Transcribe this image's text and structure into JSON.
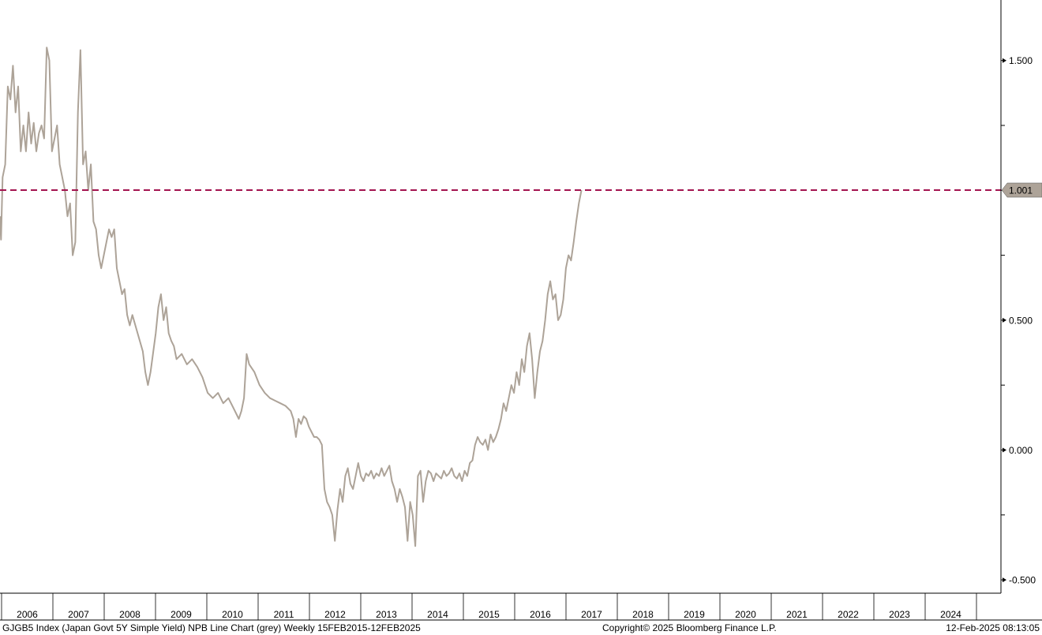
{
  "footer": {
    "ticker_description": "GJGB5 Index (Japan Govt 5Y Simple Yield) NPB Line Chart (grey)  Weekly 15FEB2015-12FEB2025",
    "copyright": "Copyright© 2025 Bloomberg Finance L.P.",
    "timestamp": "12-Feb-2025 08:13:05"
  },
  "chart_data": {
    "type": "line",
    "title": "",
    "xlabel": "",
    "ylabel": "",
    "xlim": [
      2006.2,
      2025.1
    ],
    "ylim": [
      -0.52,
      1.72
    ],
    "x_tick_labels": [
      "2006",
      "2007",
      "2008",
      "2009",
      "2010",
      "2011",
      "2012",
      "2013",
      "2014",
      "2015",
      "2016",
      "2017",
      "2018",
      "2019",
      "2020",
      "2021",
      "2022",
      "2023",
      "2024"
    ],
    "y_tick_labels": [
      "1.500",
      "0.500",
      "0.000",
      "-0.500"
    ],
    "y_tick_values": [
      1.5,
      0.5,
      0.0,
      -0.5
    ],
    "y_minor_ticks": [
      1.25,
      1.0,
      0.75,
      0.25,
      -0.25
    ],
    "grid": false,
    "series": [
      {
        "color": "#ada398",
        "points": [
          [
            2006.2,
            0.9
          ],
          [
            2006.22,
            0.81
          ],
          [
            2006.25,
            1.05
          ],
          [
            2006.3,
            1.1
          ],
          [
            2006.35,
            1.4
          ],
          [
            2006.4,
            1.35
          ],
          [
            2006.45,
            1.48
          ],
          [
            2006.5,
            1.3
          ],
          [
            2006.55,
            1.4
          ],
          [
            2006.6,
            1.15
          ],
          [
            2006.65,
            1.25
          ],
          [
            2006.7,
            1.15
          ],
          [
            2006.75,
            1.3
          ],
          [
            2006.8,
            1.18
          ],
          [
            2006.85,
            1.26
          ],
          [
            2006.9,
            1.15
          ],
          [
            2006.95,
            1.22
          ],
          [
            2007.0,
            1.25
          ],
          [
            2007.05,
            1.2
          ],
          [
            2007.1,
            1.55
          ],
          [
            2007.15,
            1.5
          ],
          [
            2007.2,
            1.15
          ],
          [
            2007.25,
            1.2
          ],
          [
            2007.3,
            1.25
          ],
          [
            2007.35,
            1.1
          ],
          [
            2007.4,
            1.05
          ],
          [
            2007.45,
            1.0
          ],
          [
            2007.5,
            0.9
          ],
          [
            2007.55,
            0.95
          ],
          [
            2007.6,
            0.75
          ],
          [
            2007.65,
            0.8
          ],
          [
            2007.7,
            1.3
          ],
          [
            2007.75,
            1.54
          ],
          [
            2007.8,
            1.1
          ],
          [
            2007.85,
            1.15
          ],
          [
            2007.9,
            1.0
          ],
          [
            2007.95,
            1.1
          ],
          [
            2008.0,
            0.88
          ],
          [
            2008.05,
            0.85
          ],
          [
            2008.1,
            0.75
          ],
          [
            2008.15,
            0.7
          ],
          [
            2008.2,
            0.75
          ],
          [
            2008.25,
            0.8
          ],
          [
            2008.3,
            0.85
          ],
          [
            2008.35,
            0.82
          ],
          [
            2008.4,
            0.85
          ],
          [
            2008.45,
            0.7
          ],
          [
            2008.5,
            0.65
          ],
          [
            2008.55,
            0.6
          ],
          [
            2008.6,
            0.62
          ],
          [
            2008.65,
            0.52
          ],
          [
            2008.7,
            0.48
          ],
          [
            2008.75,
            0.52
          ],
          [
            2008.85,
            0.45
          ],
          [
            2008.95,
            0.38
          ],
          [
            2009.0,
            0.3
          ],
          [
            2009.05,
            0.25
          ],
          [
            2009.1,
            0.3
          ],
          [
            2009.2,
            0.45
          ],
          [
            2009.25,
            0.55
          ],
          [
            2009.3,
            0.6
          ],
          [
            2009.35,
            0.5
          ],
          [
            2009.4,
            0.55
          ],
          [
            2009.45,
            0.45
          ],
          [
            2009.5,
            0.42
          ],
          [
            2009.55,
            0.4
          ],
          [
            2009.6,
            0.35
          ],
          [
            2009.7,
            0.37
          ],
          [
            2009.8,
            0.33
          ],
          [
            2009.9,
            0.35
          ],
          [
            2010.0,
            0.32
          ],
          [
            2010.1,
            0.28
          ],
          [
            2010.2,
            0.22
          ],
          [
            2010.3,
            0.2
          ],
          [
            2010.4,
            0.22
          ],
          [
            2010.5,
            0.18
          ],
          [
            2010.6,
            0.2
          ],
          [
            2010.7,
            0.16
          ],
          [
            2010.8,
            0.12
          ],
          [
            2010.85,
            0.15
          ],
          [
            2010.9,
            0.2
          ],
          [
            2010.95,
            0.37
          ],
          [
            2011.0,
            0.33
          ],
          [
            2011.1,
            0.3
          ],
          [
            2011.2,
            0.25
          ],
          [
            2011.3,
            0.22
          ],
          [
            2011.4,
            0.2
          ],
          [
            2011.5,
            0.19
          ],
          [
            2011.6,
            0.18
          ],
          [
            2011.7,
            0.17
          ],
          [
            2011.8,
            0.15
          ],
          [
            2011.85,
            0.12
          ],
          [
            2011.9,
            0.05
          ],
          [
            2011.95,
            0.12
          ],
          [
            2012.0,
            0.1
          ],
          [
            2012.05,
            0.13
          ],
          [
            2012.1,
            0.12
          ],
          [
            2012.15,
            0.09
          ],
          [
            2012.2,
            0.07
          ],
          [
            2012.25,
            0.05
          ],
          [
            2012.3,
            0.05
          ],
          [
            2012.35,
            0.04
          ],
          [
            2012.4,
            0.02
          ],
          [
            2012.45,
            -0.15
          ],
          [
            2012.5,
            -0.2
          ],
          [
            2012.55,
            -0.22
          ],
          [
            2012.6,
            -0.25
          ],
          [
            2012.65,
            -0.35
          ],
          [
            2012.7,
            -0.23
          ],
          [
            2012.75,
            -0.15
          ],
          [
            2012.8,
            -0.2
          ],
          [
            2012.85,
            -0.1
          ],
          [
            2012.9,
            -0.07
          ],
          [
            2012.95,
            -0.13
          ],
          [
            2013.0,
            -0.15
          ],
          [
            2013.05,
            -0.1
          ],
          [
            2013.1,
            -0.05
          ],
          [
            2013.15,
            -0.1
          ],
          [
            2013.2,
            -0.12
          ],
          [
            2013.25,
            -0.09
          ],
          [
            2013.3,
            -0.1
          ],
          [
            2013.35,
            -0.08
          ],
          [
            2013.4,
            -0.11
          ],
          [
            2013.45,
            -0.09
          ],
          [
            2013.5,
            -0.1
          ],
          [
            2013.55,
            -0.07
          ],
          [
            2013.6,
            -0.1
          ],
          [
            2013.65,
            -0.08
          ],
          [
            2013.7,
            -0.06
          ],
          [
            2013.75,
            -0.12
          ],
          [
            2013.8,
            -0.15
          ],
          [
            2013.85,
            -0.2
          ],
          [
            2013.9,
            -0.15
          ],
          [
            2013.95,
            -0.18
          ],
          [
            2014.0,
            -0.22
          ],
          [
            2014.05,
            -0.35
          ],
          [
            2014.1,
            -0.2
          ],
          [
            2014.15,
            -0.25
          ],
          [
            2014.2,
            -0.37
          ],
          [
            2014.25,
            -0.1
          ],
          [
            2014.3,
            -0.08
          ],
          [
            2014.35,
            -0.2
          ],
          [
            2014.4,
            -0.12
          ],
          [
            2014.45,
            -0.08
          ],
          [
            2014.5,
            -0.09
          ],
          [
            2014.55,
            -0.12
          ],
          [
            2014.6,
            -0.09
          ],
          [
            2014.65,
            -0.1
          ],
          [
            2014.7,
            -0.11
          ],
          [
            2014.75,
            -0.08
          ],
          [
            2014.8,
            -0.1
          ],
          [
            2014.85,
            -0.09
          ],
          [
            2014.9,
            -0.07
          ],
          [
            2014.95,
            -0.1
          ],
          [
            2015.0,
            -0.11
          ],
          [
            2015.05,
            -0.09
          ],
          [
            2015.1,
            -0.12
          ],
          [
            2015.15,
            -0.08
          ],
          [
            2015.2,
            -0.1
          ],
          [
            2015.25,
            -0.05
          ],
          [
            2015.3,
            -0.04
          ],
          [
            2015.35,
            0.02
          ],
          [
            2015.4,
            0.05
          ],
          [
            2015.45,
            0.03
          ],
          [
            2015.5,
            0.02
          ],
          [
            2015.55,
            0.04
          ],
          [
            2015.6,
            0.0
          ],
          [
            2015.65,
            0.06
          ],
          [
            2015.7,
            0.03
          ],
          [
            2015.75,
            0.05
          ],
          [
            2015.8,
            0.08
          ],
          [
            2015.85,
            0.12
          ],
          [
            2015.9,
            0.18
          ],
          [
            2015.95,
            0.15
          ],
          [
            2016.0,
            0.2
          ],
          [
            2016.05,
            0.25
          ],
          [
            2016.1,
            0.22
          ],
          [
            2016.15,
            0.3
          ],
          [
            2016.2,
            0.25
          ],
          [
            2016.25,
            0.35
          ],
          [
            2016.3,
            0.3
          ],
          [
            2016.35,
            0.4
          ],
          [
            2016.4,
            0.45
          ],
          [
            2016.45,
            0.35
          ],
          [
            2016.5,
            0.2
          ],
          [
            2016.55,
            0.3
          ],
          [
            2016.6,
            0.38
          ],
          [
            2016.65,
            0.42
          ],
          [
            2016.7,
            0.5
          ],
          [
            2016.75,
            0.6
          ],
          [
            2016.8,
            0.65
          ],
          [
            2016.85,
            0.58
          ],
          [
            2016.9,
            0.6
          ],
          [
            2016.95,
            0.5
          ],
          [
            2017.0,
            0.52
          ],
          [
            2017.05,
            0.58
          ],
          [
            2017.1,
            0.7
          ],
          [
            2017.15,
            0.75
          ],
          [
            2017.2,
            0.73
          ],
          [
            2017.25,
            0.8
          ],
          [
            2017.3,
            0.88
          ],
          [
            2017.35,
            0.95
          ],
          [
            2017.4,
            1.001
          ]
        ]
      }
    ],
    "reference_line": {
      "value": 1.001,
      "label": "1.001",
      "color": "#a3134f",
      "style": "dashed"
    },
    "value_tag": {
      "text": "1.001",
      "color": "#ada398"
    }
  }
}
